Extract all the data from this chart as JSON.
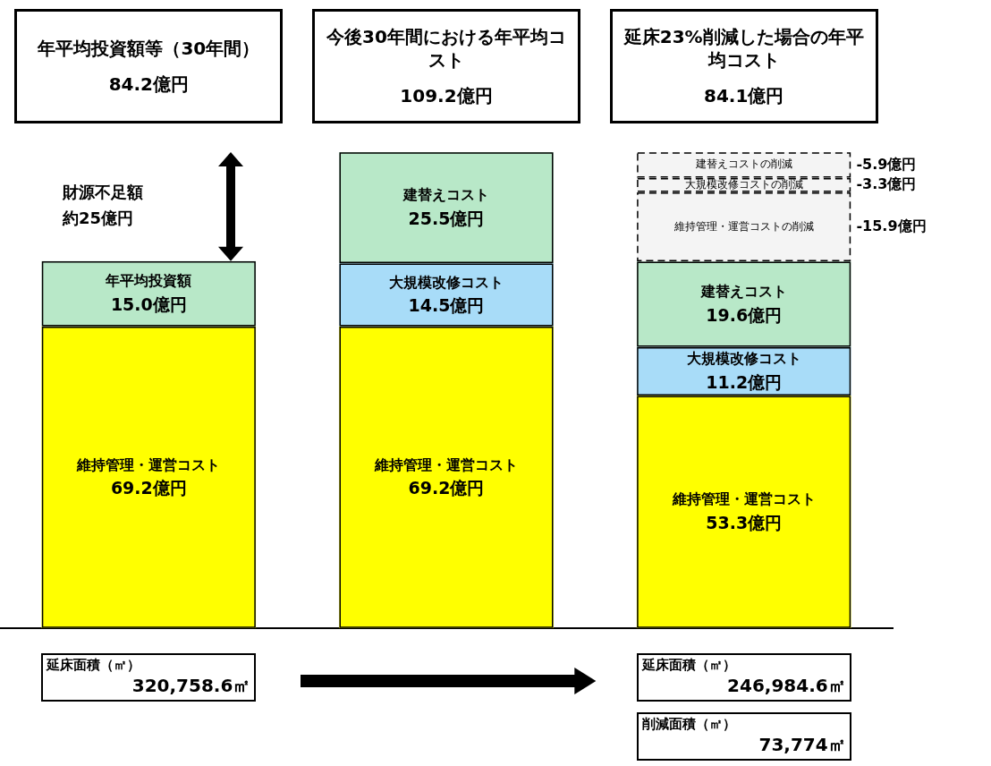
{
  "chart_data": {
    "type": "bar",
    "stacked": true,
    "categories": [
      "年平均投資額等（30年間）",
      "今後30年間における年平均コスト",
      "延床23%削減した場合の年平均コスト"
    ],
    "series": [
      {
        "name": "維持管理・運営コスト",
        "color": "#ffff00",
        "values": [
          69.2,
          69.2,
          53.3
        ],
        "value_labels": [
          "69.2億円",
          "69.2億円",
          "53.3億円"
        ]
      },
      {
        "name": "年平均投資額",
        "color": "#b8e8c8",
        "values": [
          15.0,
          null,
          null
        ],
        "value_labels": [
          "15.0億円",
          null,
          null
        ]
      },
      {
        "name": "大規模改修コスト",
        "color": "#a8dcf8",
        "values": [
          null,
          14.5,
          11.2
        ],
        "value_labels": [
          null,
          "14.5億円",
          "11.2億円"
        ]
      },
      {
        "name": "建替えコスト",
        "color": "#b8e8c8",
        "values": [
          null,
          25.5,
          19.6
        ],
        "value_labels": [
          null,
          "25.5億円",
          "19.6億円"
        ]
      },
      {
        "name": "維持管理・運営コストの削減",
        "color": "#f4f4f4",
        "line_style": "dashed",
        "values": [
          null,
          null,
          15.9
        ]
      },
      {
        "name": "大規模改修コストの削減",
        "color": "#f4f4f4",
        "line_style": "dashed",
        "values": [
          null,
          null,
          3.3
        ]
      },
      {
        "name": "建替えコストの削減",
        "color": "#f4f4f4",
        "line_style": "dashed",
        "values": [
          null,
          null,
          5.9
        ]
      }
    ],
    "annotations": [
      "84.2億円",
      "109.2億円",
      "84.1億円",
      "財源不足額約25億円",
      "-15.9億円",
      "-3.3億円",
      "-5.9億円",
      "延床面積（㎡）\n320,758.6㎡",
      "延床面積（㎡）\n246,984.6㎡",
      "削減面積（㎡）\n73,774㎡"
    ]
  }
}
